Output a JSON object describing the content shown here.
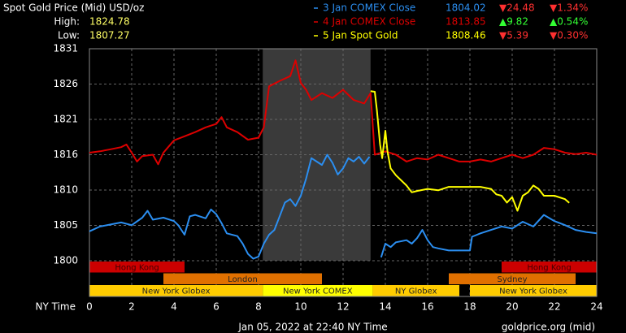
{
  "chart_data": {
    "type": "line",
    "title": "Spot Gold Price (Mid) USD/oz",
    "high": {
      "label": "High:",
      "value": 1824.78
    },
    "low": {
      "label": "Low:",
      "value": 1807.27
    },
    "xlabel": "NY Time",
    "footer": "Jan 05, 2022 at 22:40 NY Time",
    "source": "goldprice.org (mid)",
    "xlim": [
      0,
      24
    ],
    "xticks": [
      0,
      2,
      4,
      6,
      8,
      10,
      12,
      14,
      16,
      18,
      20,
      22,
      24
    ],
    "ylim": [
      1800,
      1831
    ],
    "yticks": [
      {
        "value": 1800,
        "label": "1800"
      },
      {
        "value": 1805.17,
        "label": "1805"
      },
      {
        "value": 1810.33,
        "label": "1810"
      },
      {
        "value": 1815.5,
        "label": "1816"
      },
      {
        "value": 1820.67,
        "label": "1821"
      },
      {
        "value": 1825.83,
        "label": "1826"
      },
      {
        "value": 1831,
        "label": "1831"
      }
    ],
    "grid": true,
    "shaded_x": [
      8.2,
      13.3
    ],
    "sessions": [
      [
        {
          "name": "Hong Kong",
          "start": 0,
          "end": 4.5,
          "color": "#cc0000"
        },
        {
          "name": "Hong Kong",
          "start": 19.5,
          "end": 24,
          "color": "#cc0000"
        }
      ],
      [
        {
          "name": "London",
          "start": 3.5,
          "end": 11,
          "color": "#e07000"
        },
        {
          "name": "Sydney",
          "start": 17,
          "end": 23,
          "color": "#e07000"
        }
      ],
      [
        {
          "name": "New York Globex",
          "start": 0,
          "end": 8.2,
          "color": "#ffcc00"
        },
        {
          "name": "New York COMEX",
          "start": 8.2,
          "end": 13.4,
          "color": "#ffff00"
        },
        {
          "name": "NY Globex",
          "start": 13.4,
          "end": 17.5,
          "color": "#ffcc00"
        },
        {
          "name": "New York Globex",
          "start": 18,
          "end": 24,
          "color": "#ffcc00"
        }
      ]
    ],
    "series": [
      {
        "name": "3 Jan COMEX Close",
        "color": "#2b8ef0",
        "close": 1804.02,
        "change": "▼24.48",
        "change_pct": "▼1.34%",
        "change_color": "#ff3030",
        "x": [
          0,
          0.5,
          1,
          1.5,
          2,
          2.5,
          2.75,
          3,
          3.5,
          4,
          4.2,
          4.5,
          4.75,
          5,
          5.5,
          5.75,
          6,
          6.25,
          6.5,
          7,
          7.25,
          7.5,
          7.75,
          8,
          8.25,
          8.5,
          8.75,
          9,
          9.25,
          9.5,
          9.75,
          10,
          10.25,
          10.5,
          10.75,
          11,
          11.25,
          11.5,
          11.75,
          12,
          12.25,
          12.5,
          12.75,
          13,
          13.25,
          13.6,
          13.8,
          14,
          14.25,
          14.5,
          15,
          15.25,
          15.5,
          15.75,
          16,
          16.25,
          16.5,
          17,
          17.5,
          18,
          18.1,
          18.5,
          19,
          19.5,
          20,
          20.5,
          21,
          21.5,
          22,
          22.5,
          23,
          23.5,
          24
        ],
        "values": [
          1804.3,
          1805,
          1805.3,
          1805.6,
          1805.2,
          1806.3,
          1807.3,
          1806,
          1806.3,
          1805.8,
          1805.2,
          1803.8,
          1806.5,
          1806.7,
          1806.2,
          1807.5,
          1806.8,
          1805.5,
          1804,
          1803.6,
          1802.5,
          1801,
          1800.3,
          1800.6,
          1802.5,
          1803.8,
          1804.5,
          1806.5,
          1808.5,
          1809,
          1808,
          1809.5,
          1812,
          1815,
          1814.5,
          1814,
          1815.5,
          1814.3,
          1812.6,
          1813.5,
          1815,
          1814.5,
          1815.2,
          1814.2,
          1815.2,
          null,
          1800.5,
          1802.5,
          1802,
          1802.7,
          1803,
          1802.5,
          1803.3,
          1804.5,
          1803,
          1802,
          1801.8,
          1801.5,
          1801.5,
          1801.5,
          1803.5,
          1804,
          1804.5,
          1805,
          1804.7,
          1805.7,
          1805,
          1806.7,
          1805.8,
          1805.2,
          1804.5,
          1804.2,
          1804.02
        ]
      },
      {
        "name": "4 Jan COMEX Close",
        "color": "#dd0000",
        "close": 1813.85,
        "change": "▲9.82",
        "change_pct": "▲0.54%",
        "change_color": "#33ff33",
        "x": [
          0,
          0.5,
          1,
          1.5,
          1.75,
          2,
          2.25,
          2.5,
          3,
          3.25,
          3.5,
          4,
          4.5,
          5,
          5.5,
          6,
          6.25,
          6.5,
          7,
          7.5,
          8,
          8.25,
          8.5,
          9,
          9.5,
          9.75,
          10,
          10.25,
          10.5,
          11,
          11.5,
          12,
          12.5,
          13,
          13.3,
          13.5,
          14,
          14.5,
          15,
          15.5,
          16,
          16.5,
          17,
          17.5,
          18,
          18.5,
          19,
          19.5,
          20,
          20.5,
          21,
          21.5,
          22,
          22.5,
          23,
          23.5,
          24
        ],
        "values": [
          1815.8,
          1816,
          1816.3,
          1816.6,
          1817,
          1815.8,
          1814.5,
          1815.3,
          1815.5,
          1814.1,
          1815.8,
          1817.6,
          1818.2,
          1818.8,
          1819.5,
          1820,
          1821,
          1819.5,
          1818.8,
          1817.7,
          1818,
          1819.5,
          1825.5,
          1826.3,
          1827,
          1829.3,
          1826,
          1825,
          1823.5,
          1824.5,
          1823.8,
          1825,
          1823.5,
          1823,
          1824.5,
          1815.5,
          1816,
          1815.5,
          1814.5,
          1815,
          1814.8,
          1815.5,
          1815,
          1814.5,
          1814.5,
          1814.8,
          1814.5,
          1815,
          1815.5,
          1815,
          1815.5,
          1816.5,
          1816.3,
          1815.8,
          1815.6,
          1815.8,
          1815.5
        ]
      },
      {
        "name": "5 Jan Spot Gold",
        "color": "#ffff00",
        "close": 1808.46,
        "change": "▼5.39",
        "change_pct": "▼0.30%",
        "change_color": "#ff3030",
        "x": [
          13.3,
          13.5,
          13.6,
          13.75,
          13.85,
          14,
          14.1,
          14.25,
          14.5,
          15,
          15.25,
          15.5,
          16,
          16.5,
          17,
          17.5,
          18,
          18.5,
          19,
          19.25,
          19.5,
          19.75,
          20,
          20.25,
          20.5,
          20.75,
          21,
          21.25,
          21.5,
          22,
          22.5,
          22.7
        ],
        "values": [
          1824.8,
          1824.7,
          1822,
          1817,
          1815,
          1819,
          1816,
          1813.5,
          1812.5,
          1811,
          1810,
          1810.2,
          1810.5,
          1810.3,
          1810.8,
          1810.8,
          1810.8,
          1810.8,
          1810.5,
          1809.7,
          1809.5,
          1808.5,
          1809.3,
          1807.3,
          1809.5,
          1810,
          1811,
          1810.5,
          1809.5,
          1809.5,
          1809,
          1808.46
        ]
      }
    ]
  }
}
